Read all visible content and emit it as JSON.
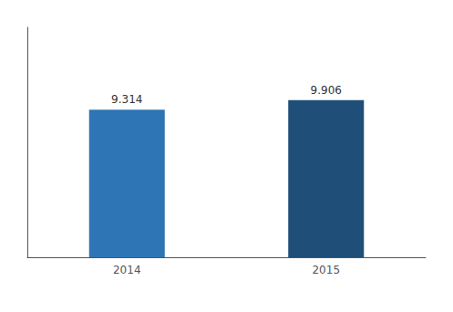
{
  "chart_data": {
    "type": "bar",
    "categories": [
      "2014",
      "2015"
    ],
    "values": [
      9.314,
      9.906
    ],
    "colors": [
      "#2e75b6",
      "#1f4e79"
    ],
    "ylim": [
      0,
      14.5
    ],
    "data_labels": true,
    "tick_labels": "x",
    "grid": false
  }
}
